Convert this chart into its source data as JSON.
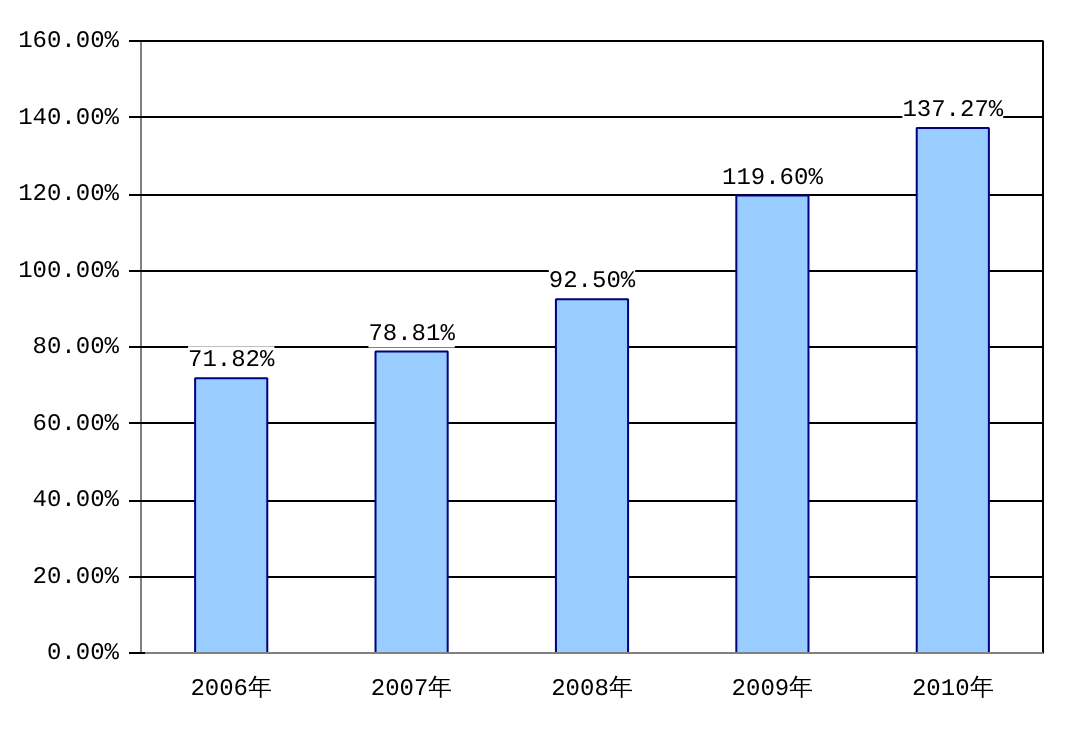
{
  "chart_data": {
    "type": "bar",
    "categories": [
      "2006年",
      "2007年",
      "2008年",
      "2009年",
      "2010年"
    ],
    "values": [
      71.82,
      78.81,
      92.5,
      119.6,
      137.27
    ],
    "value_labels": [
      "71.82%",
      "78.81%",
      "92.50%",
      "119.60%",
      "137.27%"
    ],
    "color": "#99ccff",
    "ylim": [
      0,
      160
    ],
    "yticks": [
      {
        "value": 0,
        "label": "0.00%"
      },
      {
        "value": 20,
        "label": "20.00%"
      },
      {
        "value": 40,
        "label": "40.00%"
      },
      {
        "value": 60,
        "label": "60.00%"
      },
      {
        "value": 80,
        "label": "80.00%"
      },
      {
        "value": 100,
        "label": "100.00%"
      },
      {
        "value": 120,
        "label": "120.00%"
      },
      {
        "value": 140,
        "label": "140.00%"
      },
      {
        "value": 160,
        "label": "160.00%"
      }
    ],
    "grid": "y"
  }
}
